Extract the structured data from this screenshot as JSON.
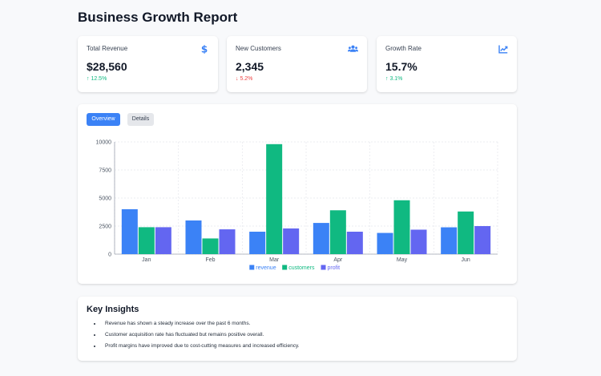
{
  "page": {
    "title": "Business Growth Report"
  },
  "stats": [
    {
      "label": "Total Revenue",
      "value": "$28,560",
      "change": "12.5%",
      "direction": "up",
      "icon": "dollar-icon"
    },
    {
      "label": "New Customers",
      "value": "2,345",
      "change": "5.2%",
      "direction": "down",
      "icon": "users-icon"
    },
    {
      "label": "Growth Rate",
      "value": "15.7%",
      "change": "3.1%",
      "direction": "up",
      "icon": "chart-line-icon"
    }
  ],
  "tabs": {
    "overview": "Overview",
    "details": "Details"
  },
  "colors": {
    "revenue": "#3b82f6",
    "customers": "#10b981",
    "profit": "#6366f1",
    "accent": "#3b82f6"
  },
  "chart_data": {
    "type": "bar",
    "categories": [
      "Jan",
      "Feb",
      "Mar",
      "Apr",
      "May",
      "Jun"
    ],
    "series": [
      {
        "name": "revenue",
        "values": [
          4000,
          3000,
          2000,
          2780,
          1890,
          2390
        ]
      },
      {
        "name": "customers",
        "values": [
          2400,
          1398,
          9800,
          3908,
          4800,
          3800
        ]
      },
      {
        "name": "profit",
        "values": [
          2400,
          2210,
          2290,
          2000,
          2181,
          2500
        ]
      }
    ],
    "yticks": [
      "0",
      "2500",
      "5000",
      "7500",
      "10000"
    ],
    "ylim": [
      0,
      10000
    ],
    "grid": true,
    "legend": "bottom",
    "title": "",
    "xlabel": "",
    "ylabel": ""
  },
  "insights": {
    "title": "Key Insights",
    "items": [
      "Revenue has shown a steady increase over the past 6 months.",
      "Customer acquisition rate has fluctuated but remains positive overall.",
      "Profit margins have improved due to cost-cutting measures and increased efficiency."
    ]
  }
}
